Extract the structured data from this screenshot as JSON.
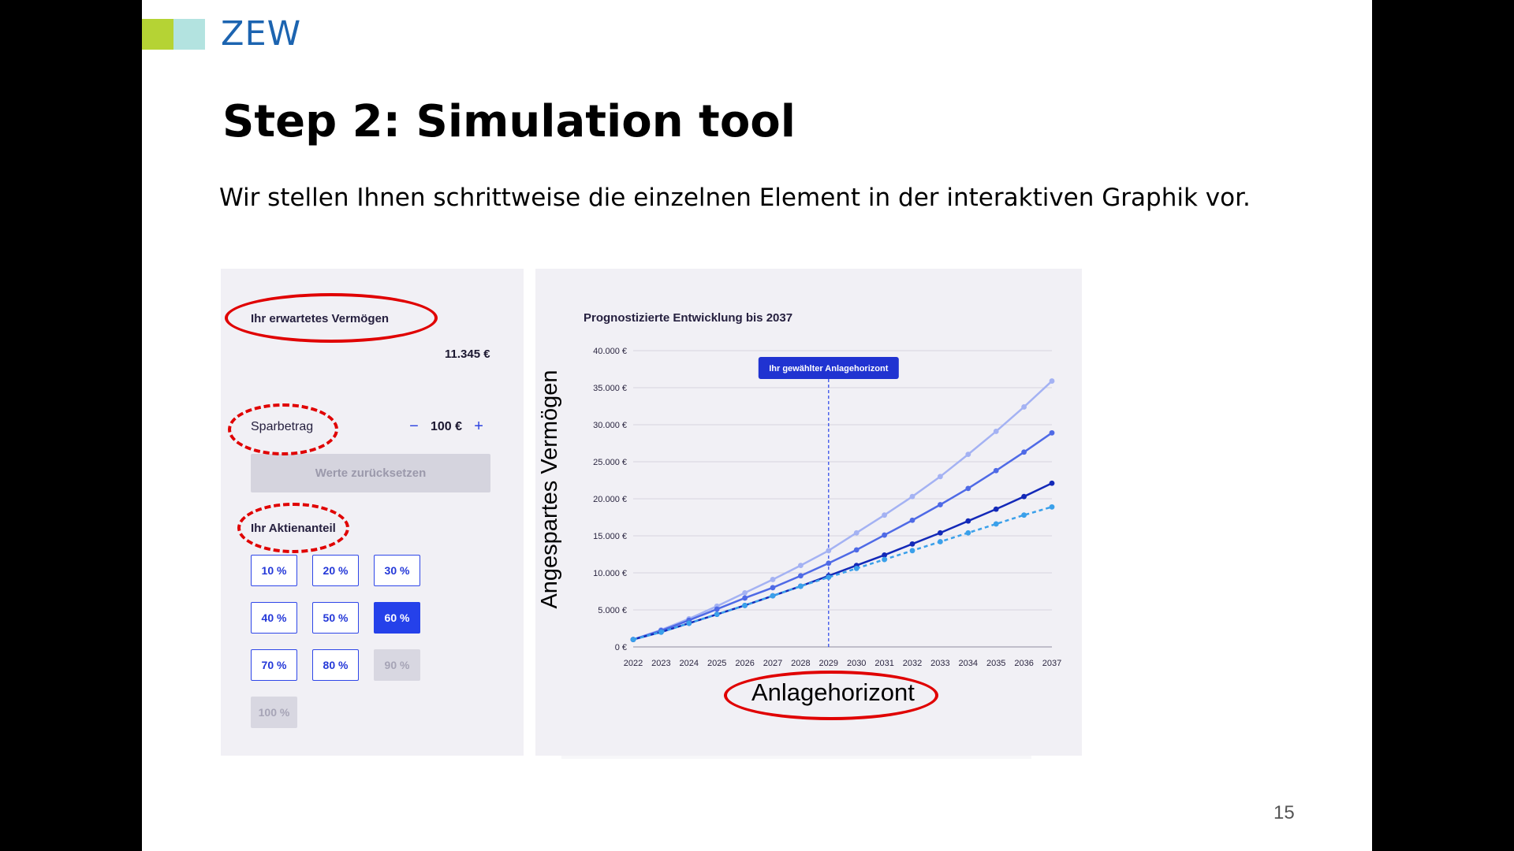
{
  "slide": {
    "logo_text": "ZEW",
    "title": "Step 2: Simulation tool",
    "subtitle": "Wir stellen Ihnen schrittweise die einzelnen Element in der interaktiven Graphik vor.",
    "page_number": "15"
  },
  "left_panel": {
    "wealth_label": "Ihr erwartetes Vermögen",
    "wealth_value": "11.345 €",
    "savings_label": "Sparbetrag",
    "savings_minus": "−",
    "savings_value": "100 €",
    "savings_plus": "+",
    "reset_label": "Werte zurücksetzen",
    "shares_label": "Ihr Aktienanteil",
    "share_options": [
      {
        "label": "10 %",
        "state": "normal"
      },
      {
        "label": "20 %",
        "state": "normal"
      },
      {
        "label": "30 %",
        "state": "normal"
      },
      {
        "label": "40 %",
        "state": "normal"
      },
      {
        "label": "50 %",
        "state": "normal"
      },
      {
        "label": "60 %",
        "state": "selected"
      },
      {
        "label": "70 %",
        "state": "normal"
      },
      {
        "label": "80 %",
        "state": "normal"
      },
      {
        "label": "90 %",
        "state": "disabled"
      },
      {
        "label": "100 %",
        "state": "disabled"
      }
    ]
  },
  "annotations": {
    "ylabel": "Angespartes Vermögen",
    "xlabel": "Anlagehorizont",
    "ellipse_color": "#e00000"
  },
  "chart_data": {
    "type": "line",
    "title": "Prognostizierte Entwicklung bis 2037",
    "x": [
      2022,
      2023,
      2024,
      2025,
      2026,
      2027,
      2028,
      2029,
      2030,
      2031,
      2032,
      2033,
      2034,
      2035,
      2036,
      2037
    ],
    "ylim": [
      0,
      40000
    ],
    "yticks": [
      0,
      5000,
      10000,
      15000,
      20000,
      25000,
      30000,
      35000,
      40000
    ],
    "ytick_labels": [
      "0 €",
      "5.000 €",
      "10.000 €",
      "15.000 €",
      "20.000 €",
      "25.000 €",
      "30.000 €",
      "35.000 €",
      "40.000 €"
    ],
    "grid": true,
    "horizon_marker": {
      "x": 2029,
      "label": "Ihr gewählter Anlagehorizont"
    },
    "series": [
      {
        "color": "#a4b2f3",
        "style": "solid",
        "values": [
          1000,
          2300,
          3800,
          5500,
          7300,
          9100,
          11000,
          13000,
          15400,
          17800,
          20300,
          23000,
          26000,
          29100,
          32400,
          35900
        ]
      },
      {
        "color": "#4f6ae6",
        "style": "solid",
        "values": [
          1000,
          2200,
          3600,
          5100,
          6600,
          8000,
          9600,
          11300,
          13100,
          15100,
          17100,
          19200,
          21400,
          23800,
          26300,
          28900
        ]
      },
      {
        "color": "#1329b8",
        "style": "solid",
        "values": [
          1000,
          2000,
          3200,
          4400,
          5600,
          6900,
          8200,
          9600,
          11000,
          12400,
          13900,
          15400,
          17000,
          18600,
          20300,
          22100
        ]
      },
      {
        "color": "#3aa0ea",
        "style": "dashed",
        "values": [
          1000,
          2000,
          3200,
          4400,
          5600,
          6900,
          8200,
          9400,
          10600,
          11800,
          13000,
          14200,
          15400,
          16600,
          17800,
          18900
        ]
      }
    ]
  }
}
